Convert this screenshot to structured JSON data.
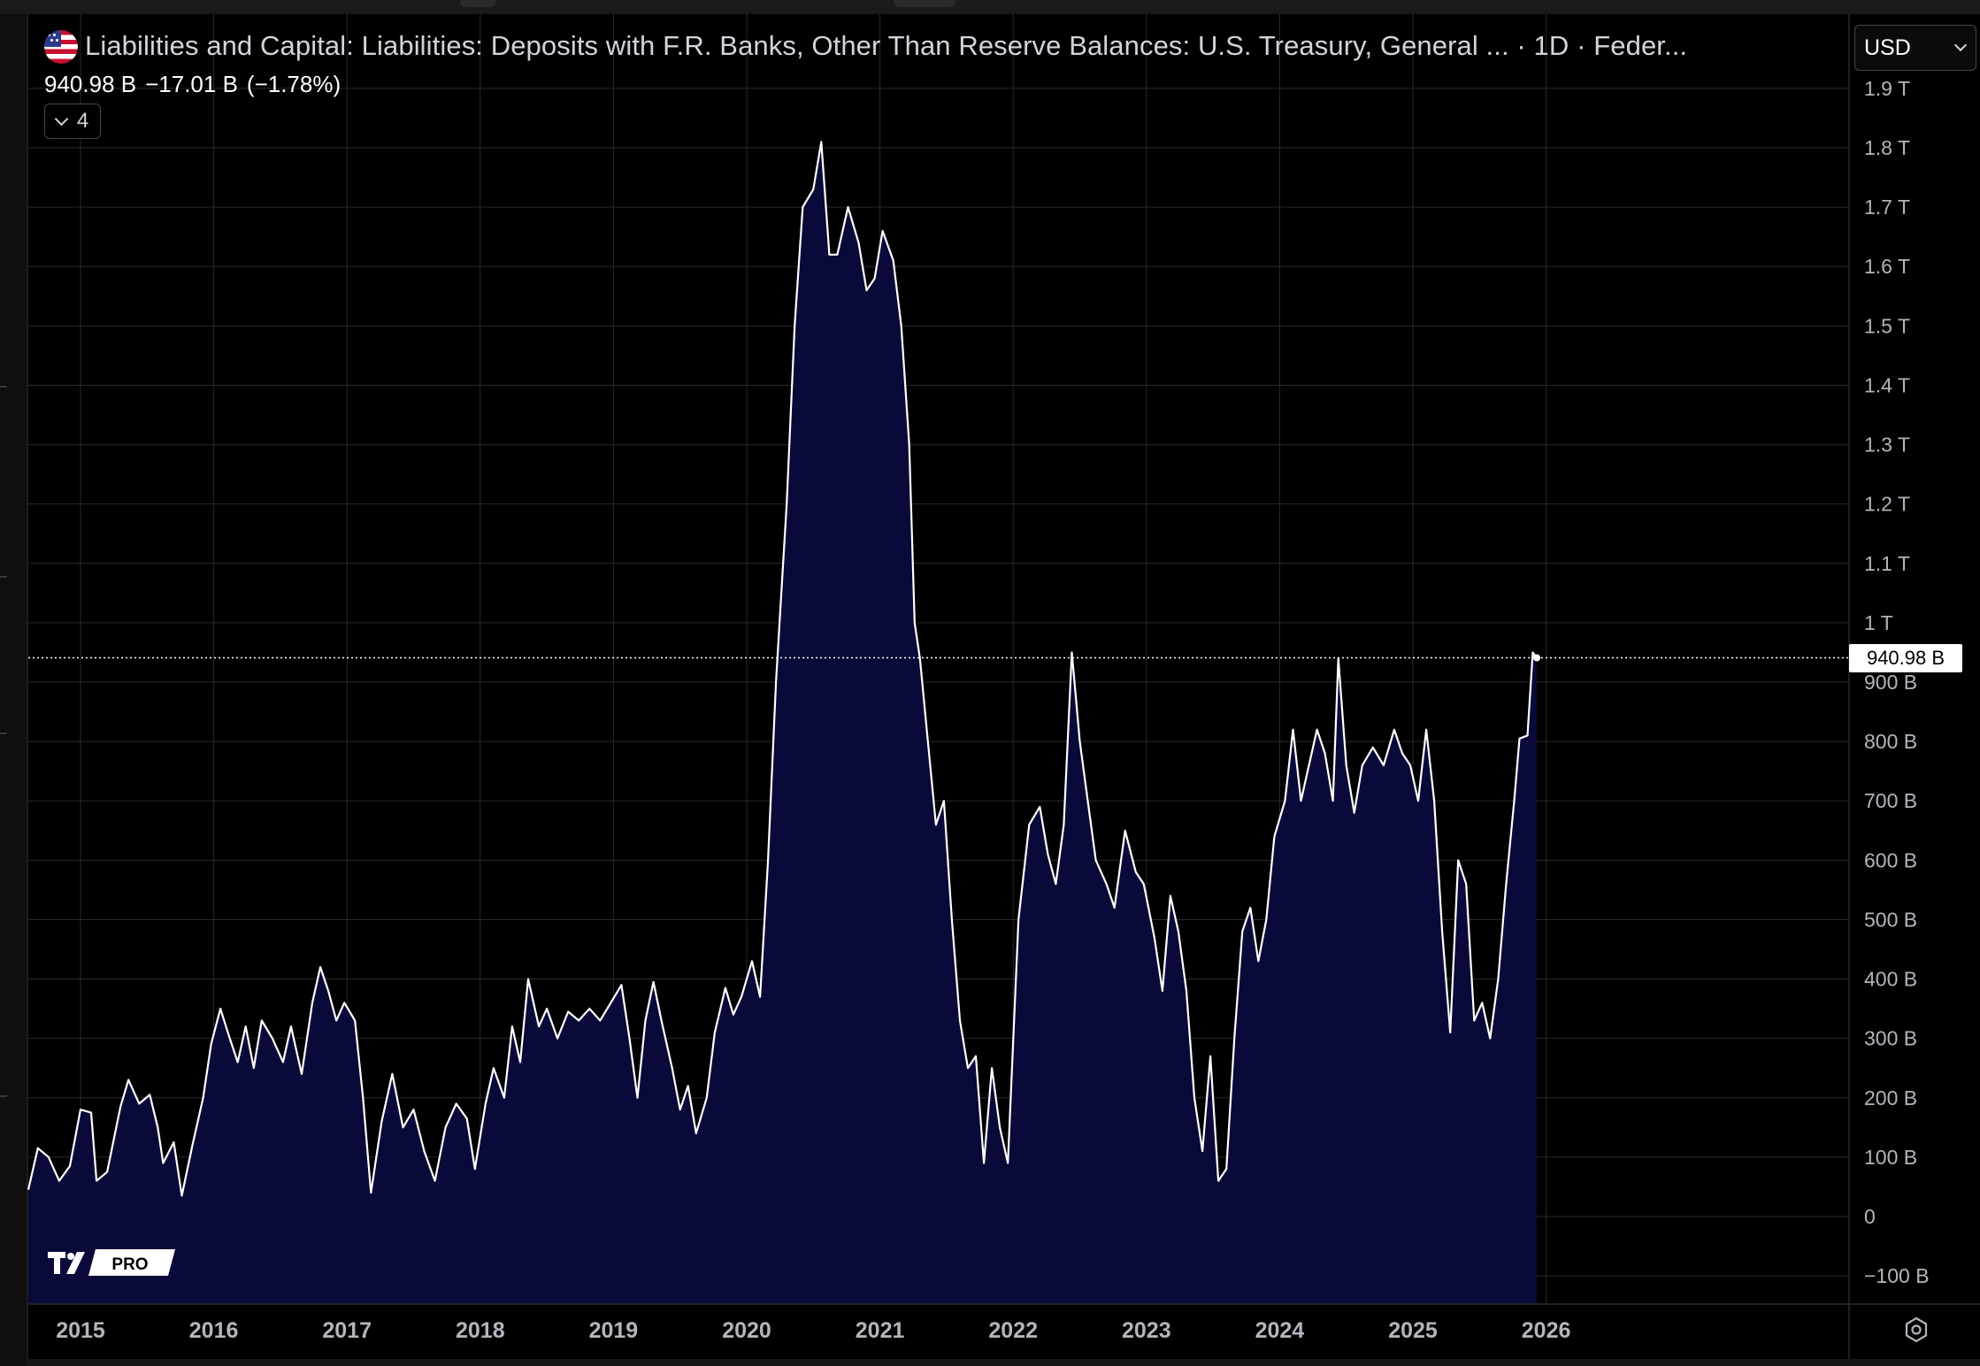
{
  "header": {
    "title": "Liabilities and Capital: Liabilities: Deposits with F.R. Banks, Other Than Reserve Balances: U.S. Treasury, General ... · 1D · Feder...",
    "last_value": "940.98 B",
    "change": "−17.01 B",
    "change_pct": "(−1.78%)",
    "collapsed_count": "4"
  },
  "toolbar": {
    "currency": "USD"
  },
  "icons": {
    "flag": "us-flag-icon",
    "collapse": "chevron-down-icon",
    "currency": "chevron-down-icon",
    "logo": "tradingview-pro-logo",
    "settings": "settings-gear-icon"
  },
  "logo_text": "PRO",
  "price_label": "940.98 B",
  "colors": {
    "line": "#ffffff",
    "area": "#0a0a3a",
    "grid": "#2a2a2a",
    "background": "#000000",
    "axis_text": "#b2b5be"
  },
  "chart_data": {
    "type": "area",
    "title": "Liabilities and Capital: Liabilities: Deposits with F.R. Banks, Other Than Reserve Balances: U.S. Treasury, General ... · 1D · Feder...",
    "xlabel": "",
    "ylabel": "",
    "unit": "USD",
    "x_ticks": [
      "2015",
      "2016",
      "2017",
      "2018",
      "2019",
      "2020",
      "2021",
      "2022",
      "2023",
      "2024",
      "2025",
      "2026"
    ],
    "y_ticks": [
      "−100 B",
      "0",
      "100 B",
      "200 B",
      "300 B",
      "400 B",
      "500 B",
      "600 B",
      "700 B",
      "800 B",
      "900 B",
      "1 T",
      "1.1 T",
      "1.2 T",
      "1.3 T",
      "1.4 T",
      "1.5 T",
      "1.6 T",
      "1.7 T",
      "1.8 T",
      "1.9 T"
    ],
    "ylim_billions": [
      -145,
      1935
    ],
    "xlim_years": [
      2014.6,
      2028.3
    ],
    "grid": true,
    "last_value_billions": 940.98,
    "series": [
      {
        "values_billions": [
          [
            2014.6,
            45
          ],
          [
            2014.68,
            115
          ],
          [
            2014.76,
            100
          ],
          [
            2014.84,
            60
          ],
          [
            2014.92,
            85
          ],
          [
            2015.0,
            180
          ],
          [
            2015.08,
            175
          ],
          [
            2015.12,
            60
          ],
          [
            2015.2,
            75
          ],
          [
            2015.3,
            185
          ],
          [
            2015.36,
            230
          ],
          [
            2015.44,
            190
          ],
          [
            2015.52,
            205
          ],
          [
            2015.58,
            150
          ],
          [
            2015.62,
            90
          ],
          [
            2015.7,
            125
          ],
          [
            2015.76,
            35
          ],
          [
            2015.84,
            120
          ],
          [
            2015.92,
            200
          ],
          [
            2015.98,
            290
          ],
          [
            2016.05,
            350
          ],
          [
            2016.12,
            300
          ],
          [
            2016.18,
            260
          ],
          [
            2016.24,
            320
          ],
          [
            2016.3,
            250
          ],
          [
            2016.36,
            330
          ],
          [
            2016.44,
            300
          ],
          [
            2016.52,
            260
          ],
          [
            2016.58,
            320
          ],
          [
            2016.66,
            240
          ],
          [
            2016.74,
            360
          ],
          [
            2016.8,
            420
          ],
          [
            2016.86,
            380
          ],
          [
            2016.92,
            330
          ],
          [
            2016.98,
            360
          ],
          [
            2017.06,
            330
          ],
          [
            2017.12,
            200
          ],
          [
            2017.18,
            40
          ],
          [
            2017.26,
            160
          ],
          [
            2017.34,
            240
          ],
          [
            2017.42,
            150
          ],
          [
            2017.5,
            180
          ],
          [
            2017.58,
            110
          ],
          [
            2017.66,
            60
          ],
          [
            2017.74,
            150
          ],
          [
            2017.82,
            190
          ],
          [
            2017.9,
            165
          ],
          [
            2017.96,
            80
          ],
          [
            2018.04,
            190
          ],
          [
            2018.1,
            250
          ],
          [
            2018.18,
            200
          ],
          [
            2018.24,
            320
          ],
          [
            2018.3,
            260
          ],
          [
            2018.36,
            400
          ],
          [
            2018.44,
            320
          ],
          [
            2018.5,
            350
          ],
          [
            2018.58,
            300
          ],
          [
            2018.66,
            345
          ],
          [
            2018.74,
            330
          ],
          [
            2018.82,
            350
          ],
          [
            2018.9,
            330
          ],
          [
            2018.98,
            360
          ],
          [
            2019.06,
            390
          ],
          [
            2019.12,
            300
          ],
          [
            2019.18,
            200
          ],
          [
            2019.24,
            330
          ],
          [
            2019.3,
            395
          ],
          [
            2019.36,
            330
          ],
          [
            2019.44,
            250
          ],
          [
            2019.5,
            180
          ],
          [
            2019.56,
            220
          ],
          [
            2019.62,
            140
          ],
          [
            2019.7,
            200
          ],
          [
            2019.76,
            310
          ],
          [
            2019.84,
            385
          ],
          [
            2019.9,
            340
          ],
          [
            2019.96,
            370
          ],
          [
            2020.04,
            430
          ],
          [
            2020.1,
            370
          ],
          [
            2020.16,
            600
          ],
          [
            2020.22,
            900
          ],
          [
            2020.3,
            1200
          ],
          [
            2020.36,
            1500
          ],
          [
            2020.42,
            1700
          ],
          [
            2020.5,
            1730
          ],
          [
            2020.56,
            1810
          ],
          [
            2020.62,
            1620
          ],
          [
            2020.68,
            1620
          ],
          [
            2020.76,
            1700
          ],
          [
            2020.84,
            1640
          ],
          [
            2020.9,
            1560
          ],
          [
            2020.96,
            1580
          ],
          [
            2021.02,
            1660
          ],
          [
            2021.1,
            1610
          ],
          [
            2021.16,
            1500
          ],
          [
            2021.22,
            1300
          ],
          [
            2021.26,
            1000
          ],
          [
            2021.3,
            940
          ],
          [
            2021.36,
            800
          ],
          [
            2021.42,
            660
          ],
          [
            2021.48,
            700
          ],
          [
            2021.54,
            500
          ],
          [
            2021.6,
            330
          ],
          [
            2021.66,
            250
          ],
          [
            2021.72,
            270
          ],
          [
            2021.78,
            90
          ],
          [
            2021.84,
            250
          ],
          [
            2021.9,
            150
          ],
          [
            2021.96,
            90
          ],
          [
            2022.04,
            500
          ],
          [
            2022.12,
            660
          ],
          [
            2022.2,
            690
          ],
          [
            2022.26,
            610
          ],
          [
            2022.32,
            560
          ],
          [
            2022.38,
            660
          ],
          [
            2022.44,
            950
          ],
          [
            2022.5,
            800
          ],
          [
            2022.56,
            700
          ],
          [
            2022.62,
            600
          ],
          [
            2022.7,
            560
          ],
          [
            2022.76,
            520
          ],
          [
            2022.84,
            650
          ],
          [
            2022.92,
            580
          ],
          [
            2022.98,
            560
          ],
          [
            2023.06,
            470
          ],
          [
            2023.12,
            380
          ],
          [
            2023.18,
            540
          ],
          [
            2023.24,
            480
          ],
          [
            2023.3,
            380
          ],
          [
            2023.36,
            200
          ],
          [
            2023.42,
            110
          ],
          [
            2023.48,
            270
          ],
          [
            2023.54,
            60
          ],
          [
            2023.6,
            80
          ],
          [
            2023.66,
            300
          ],
          [
            2023.72,
            480
          ],
          [
            2023.78,
            520
          ],
          [
            2023.84,
            430
          ],
          [
            2023.9,
            500
          ],
          [
            2023.96,
            640
          ],
          [
            2024.04,
            700
          ],
          [
            2024.1,
            820
          ],
          [
            2024.16,
            700
          ],
          [
            2024.22,
            760
          ],
          [
            2024.28,
            820
          ],
          [
            2024.34,
            780
          ],
          [
            2024.4,
            700
          ],
          [
            2024.44,
            940
          ],
          [
            2024.5,
            760
          ],
          [
            2024.56,
            680
          ],
          [
            2024.62,
            760
          ],
          [
            2024.7,
            790
          ],
          [
            2024.78,
            760
          ],
          [
            2024.86,
            820
          ],
          [
            2024.92,
            780
          ],
          [
            2024.98,
            760
          ],
          [
            2025.04,
            700
          ],
          [
            2025.1,
            820
          ],
          [
            2025.16,
            700
          ],
          [
            2025.22,
            480
          ],
          [
            2025.28,
            310
          ],
          [
            2025.34,
            600
          ],
          [
            2025.4,
            560
          ],
          [
            2025.46,
            330
          ],
          [
            2025.52,
            360
          ],
          [
            2025.58,
            300
          ],
          [
            2025.64,
            400
          ],
          [
            2025.7,
            560
          ],
          [
            2025.76,
            700
          ],
          [
            2025.8,
            805
          ],
          [
            2025.86,
            810
          ],
          [
            2025.9,
            950
          ],
          [
            2025.93,
            941
          ]
        ]
      }
    ]
  }
}
